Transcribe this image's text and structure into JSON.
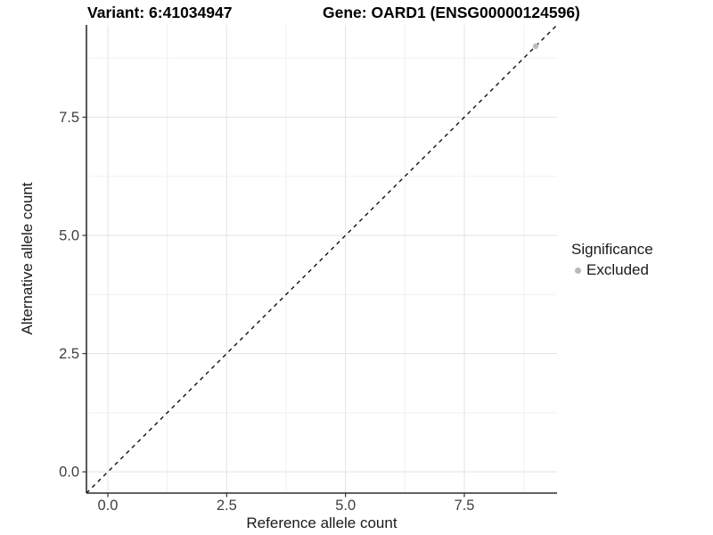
{
  "chart_data": {
    "type": "scatter",
    "title_left": "Variant: 6:41034947",
    "title_right": "Gene: OARD1 (ENSG00000124596)",
    "xlabel": "Reference allele count",
    "ylabel": "Alternative allele count",
    "xlim": [
      -0.45,
      9.45
    ],
    "ylim": [
      -0.45,
      9.45
    ],
    "x_ticks": [
      0.0,
      2.5,
      5.0,
      7.5
    ],
    "y_ticks": [
      0.0,
      2.5,
      5.0,
      7.5
    ],
    "x_minor": [
      1.25,
      3.75,
      6.25,
      8.75
    ],
    "y_minor": [
      1.25,
      3.75,
      6.25,
      8.75
    ],
    "grid": true,
    "legend_position": "right",
    "identity_line": {
      "slope": 1,
      "intercept": 0,
      "style": "dashed",
      "color": "#111111"
    },
    "series": [
      {
        "name": "Excluded",
        "color": "#bdbdbd",
        "points": [
          [
            9,
            9
          ]
        ]
      }
    ],
    "legend": {
      "title": "Significance",
      "items": [
        {
          "label": "Excluded",
          "color": "#b9b9b9"
        }
      ]
    },
    "theme": {
      "background": "#ffffff",
      "grid_major": "#e3e3e3",
      "grid_minor": "#f1f1f1",
      "axis_line": "#2e2e2e",
      "tick_mark": "#333333",
      "tick_label_color": "#404040",
      "point_radius": 3.2
    }
  }
}
